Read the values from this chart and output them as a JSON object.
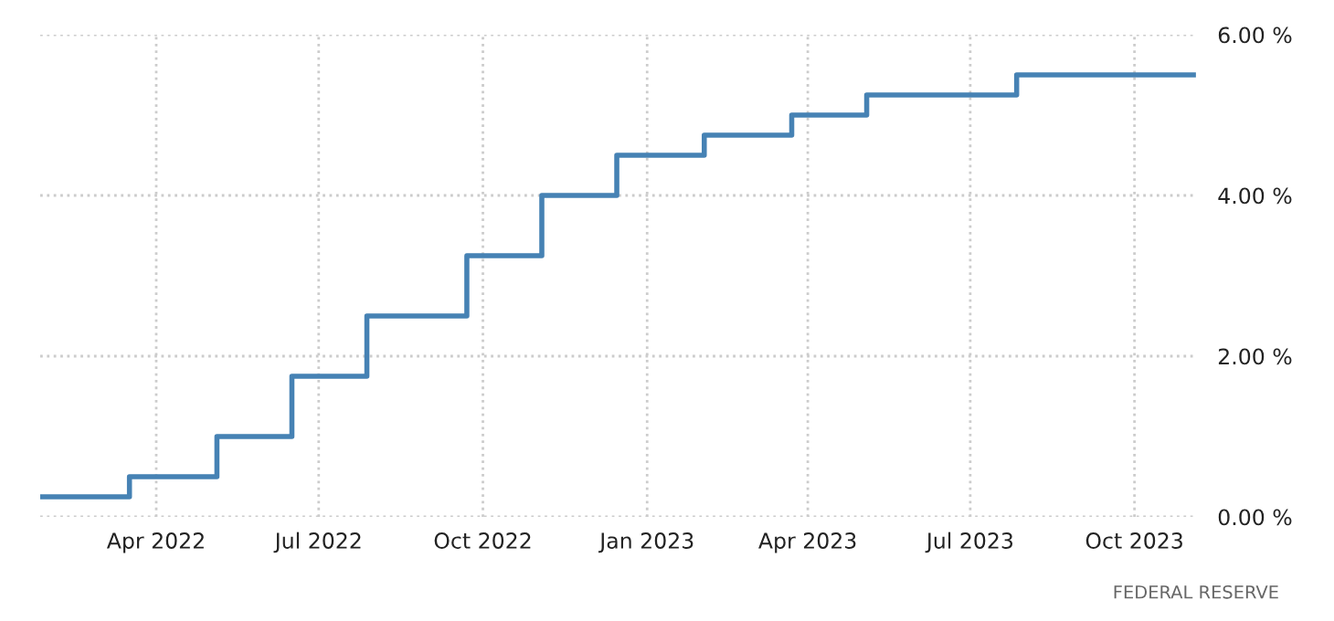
{
  "chart_data": {
    "type": "step",
    "x": [
      "2022-01-27",
      "2022-03-17",
      "2022-05-05",
      "2022-06-16",
      "2022-07-28",
      "2022-09-22",
      "2022-11-03",
      "2022-12-15",
      "2023-02-02",
      "2023-03-23",
      "2023-05-04",
      "2023-07-27",
      "2023-11-03"
    ],
    "series": [
      {
        "color": "#4682b4",
        "values": [
          0.25,
          0.5,
          1.0,
          1.75,
          2.5,
          3.25,
          4.0,
          4.5,
          4.75,
          5.0,
          5.25,
          5.5,
          5.5
        ]
      }
    ],
    "xlim": [
      "2022-01-26",
      "2023-11-05"
    ],
    "xticks": [
      {
        "value": "2022-04",
        "label": "Apr 2022"
      },
      {
        "value": "2022-07",
        "label": "Jul 2022"
      },
      {
        "value": "2022-10",
        "label": "Oct 2022"
      },
      {
        "value": "2023-01",
        "label": "Jan 2023"
      },
      {
        "value": "2023-04",
        "label": "Apr 2023"
      },
      {
        "value": "2023-07",
        "label": "Jul 2023"
      },
      {
        "value": "2023-10",
        "label": "Oct 2023"
      }
    ],
    "ylim": [
      0,
      6
    ],
    "yticks": [
      {
        "value": 0,
        "label": "0.00 %"
      },
      {
        "value": 2,
        "label": "2.00 %"
      },
      {
        "value": 4,
        "label": "4.00 %"
      },
      {
        "value": 6,
        "label": "6.00 %"
      }
    ],
    "grid": true,
    "annotations": [
      "FEDERAL RESERVE"
    ]
  }
}
